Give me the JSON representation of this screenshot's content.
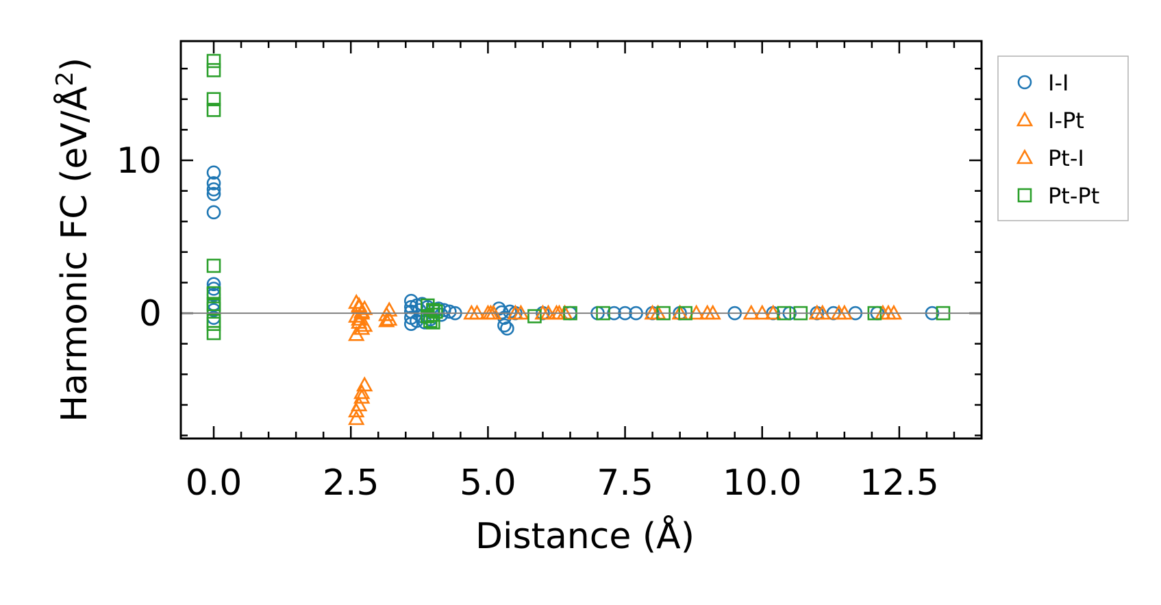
{
  "chart_data": {
    "type": "scatter",
    "title": "",
    "xlabel": "Distance (Å)",
    "ylabel_main": "Harmonic FC (eV/Å",
    "ylabel_sup": "2",
    "ylabel_close": ")",
    "xlim": [
      -0.6,
      14.0
    ],
    "ylim": [
      -8.2,
      17.8
    ],
    "xticks": [
      0.0,
      2.5,
      5.0,
      7.5,
      10.0,
      12.5
    ],
    "xtick_labels": [
      "0.0",
      "2.5",
      "5.0",
      "7.5",
      "10.0",
      "12.5"
    ],
    "yticks": [
      0,
      10
    ],
    "ytick_labels": [
      "0",
      "10"
    ],
    "legend_position": "outside-right",
    "reference_line_y": 0,
    "colors": {
      "I-I": "#1f77b4",
      "I-Pt": "#ff7f0e",
      "Pt-I": "#ff7f0e",
      "Pt-Pt": "#2ca02c",
      "zero_line": "#808080"
    },
    "series": [
      {
        "name": "I-I",
        "marker": "circle",
        "color": "#1f77b4",
        "points": [
          [
            0,
            9.2
          ],
          [
            0,
            8.5
          ],
          [
            0,
            8.1
          ],
          [
            0,
            7.8
          ],
          [
            0,
            6.6
          ],
          [
            0,
            1.9
          ],
          [
            0,
            1.6
          ],
          [
            0,
            1.2
          ],
          [
            0,
            0.6
          ],
          [
            0,
            0.2
          ],
          [
            0,
            -0.3
          ],
          [
            3.6,
            0.8
          ],
          [
            3.6,
            0.4
          ],
          [
            3.6,
            0.1
          ],
          [
            3.6,
            -0.3
          ],
          [
            3.6,
            -0.7
          ],
          [
            3.7,
            0.5
          ],
          [
            3.7,
            -0.5
          ],
          [
            3.75,
            0.2
          ],
          [
            3.8,
            0.6
          ],
          [
            3.8,
            -0.2
          ],
          [
            3.85,
            -0.6
          ],
          [
            3.9,
            0.4
          ],
          [
            3.95,
            -0.4
          ],
          [
            4.1,
            0.3
          ],
          [
            4.15,
            -0.1
          ],
          [
            4.2,
            0.2
          ],
          [
            4.3,
            0.1
          ],
          [
            4.4,
            0.0
          ],
          [
            5.2,
            0.3
          ],
          [
            5.25,
            0.05
          ],
          [
            5.3,
            -0.3
          ],
          [
            5.3,
            -0.8
          ],
          [
            5.35,
            -1.0
          ],
          [
            5.4,
            0.1
          ],
          [
            5.5,
            0.0
          ],
          [
            6.0,
            0.0
          ],
          [
            6.5,
            0.0
          ],
          [
            7.0,
            0.0
          ],
          [
            7.3,
            0.0
          ],
          [
            7.5,
            0.0
          ],
          [
            7.7,
            0.0
          ],
          [
            8.0,
            0.0
          ],
          [
            8.5,
            0.0
          ],
          [
            9.5,
            0.0
          ],
          [
            10.2,
            0.0
          ],
          [
            10.5,
            0.0
          ],
          [
            11.0,
            0.0
          ],
          [
            11.3,
            0.0
          ],
          [
            11.7,
            0.0
          ],
          [
            12.1,
            0.0
          ],
          [
            13.1,
            0.0
          ]
        ]
      },
      {
        "name": "I-Pt",
        "marker": "triangle",
        "color": "#ff7f0e",
        "points": [
          [
            2.6,
            0.7
          ],
          [
            2.65,
            0.4
          ],
          [
            2.7,
            0.1
          ],
          [
            2.6,
            -0.2
          ],
          [
            2.65,
            -0.6
          ],
          [
            2.7,
            -1.0
          ],
          [
            2.6,
            -1.4
          ],
          [
            2.75,
            0.3
          ],
          [
            2.7,
            -5.5
          ],
          [
            2.65,
            -6.0
          ],
          [
            2.6,
            -6.9
          ],
          [
            3.15,
            -0.1
          ],
          [
            3.2,
            -0.4
          ],
          [
            4.7,
            0.0
          ],
          [
            5.0,
            0.0
          ],
          [
            5.1,
            0.0
          ],
          [
            5.6,
            0.0
          ],
          [
            6.1,
            0.0
          ],
          [
            6.3,
            0.0
          ],
          [
            8.1,
            0.0
          ],
          [
            8.5,
            0.0
          ],
          [
            9.1,
            0.0
          ],
          [
            9.8,
            0.0
          ],
          [
            10.2,
            0.0
          ],
          [
            11.0,
            0.0
          ],
          [
            11.4,
            0.0
          ],
          [
            12.2,
            0.0
          ],
          [
            12.4,
            0.0
          ]
        ]
      },
      {
        "name": "Pt-I",
        "marker": "triangle",
        "color": "#ff7f0e",
        "points": [
          [
            2.65,
            0.5
          ],
          [
            2.7,
            0.0
          ],
          [
            2.65,
            -0.4
          ],
          [
            2.75,
            -0.8
          ],
          [
            2.75,
            -4.7
          ],
          [
            2.7,
            -5.2
          ],
          [
            2.6,
            -6.4
          ],
          [
            3.2,
            0.2
          ],
          [
            3.15,
            -0.5
          ],
          [
            4.8,
            0.0
          ],
          [
            5.05,
            0.0
          ],
          [
            5.5,
            0.0
          ],
          [
            6.0,
            0.0
          ],
          [
            6.25,
            0.0
          ],
          [
            6.4,
            0.0
          ],
          [
            8.0,
            0.0
          ],
          [
            8.8,
            0.0
          ],
          [
            9.0,
            0.0
          ],
          [
            10.0,
            0.0
          ],
          [
            11.1,
            0.0
          ],
          [
            11.5,
            0.0
          ],
          [
            12.3,
            0.0
          ]
        ]
      },
      {
        "name": "Pt-Pt",
        "marker": "square",
        "color": "#2ca02c",
        "points": [
          [
            0,
            16.5
          ],
          [
            0,
            15.9
          ],
          [
            0,
            14.0
          ],
          [
            0,
            13.3
          ],
          [
            0,
            3.1
          ],
          [
            0,
            1.3
          ],
          [
            0,
            0.6
          ],
          [
            0,
            0.3
          ],
          [
            0,
            -0.5
          ],
          [
            0,
            -0.7
          ],
          [
            0,
            -1.3
          ],
          [
            3.9,
            0.5
          ],
          [
            3.9,
            -0.2
          ],
          [
            3.95,
            -0.5
          ],
          [
            4.0,
            0.2
          ],
          [
            4.0,
            -0.1
          ],
          [
            4.05,
            0.1
          ],
          [
            4.0,
            -0.6
          ],
          [
            5.85,
            -0.2
          ],
          [
            6.5,
            0.0
          ],
          [
            7.1,
            0.0
          ],
          [
            8.2,
            0.0
          ],
          [
            8.6,
            0.0
          ],
          [
            10.4,
            0.0
          ],
          [
            10.7,
            0.0
          ],
          [
            12.05,
            0.0
          ],
          [
            13.3,
            0.0
          ]
        ]
      }
    ]
  }
}
